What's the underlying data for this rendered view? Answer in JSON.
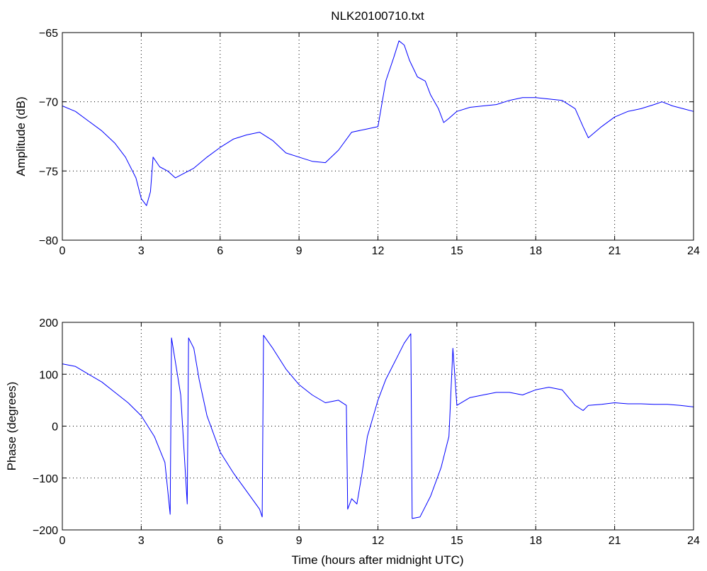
{
  "colors": {
    "line": "#0000ff",
    "axes": "#000000",
    "grid": "#000000",
    "background": "#ffffff"
  },
  "chart_data": [
    {
      "type": "line",
      "title": "NLK20100710.txt",
      "xlabel": "",
      "ylabel": "Amplitude (dB)",
      "xlim": [
        0,
        24
      ],
      "ylim": [
        -80,
        -65
      ],
      "xticks": [
        0,
        3,
        6,
        9,
        12,
        15,
        18,
        21,
        24
      ],
      "yticks": [
        -80,
        -75,
        -70,
        -65
      ],
      "grid": true,
      "series": [
        {
          "x": [
            0,
            0.5,
            1,
            1.5,
            2,
            2.4,
            2.8,
            3.0,
            3.2,
            3.35,
            3.45,
            3.7,
            4.0,
            4.3,
            4.6,
            5.0,
            5.5,
            6.0,
            6.5,
            7.0,
            7.5,
            8.0,
            8.5,
            9.0,
            9.5,
            10.0,
            10.5,
            11.0,
            11.5,
            12.0,
            12.3,
            12.6,
            12.8,
            13.0,
            13.2,
            13.5,
            13.8,
            14.0,
            14.3,
            14.5,
            14.7,
            15.0,
            15.5,
            16.0,
            16.5,
            17.0,
            17.5,
            18.0,
            18.5,
            19.0,
            19.5,
            19.8,
            20.0,
            20.5,
            21.0,
            21.5,
            22.0,
            22.5,
            22.8,
            23.2,
            23.6,
            24.0
          ],
          "y": [
            -70.3,
            -70.7,
            -71.4,
            -72.1,
            -73.0,
            -74.0,
            -75.5,
            -77.0,
            -77.5,
            -76.5,
            -74.0,
            -74.7,
            -75.0,
            -75.5,
            -75.2,
            -74.8,
            -74.0,
            -73.3,
            -72.7,
            -72.4,
            -72.2,
            -72.8,
            -73.7,
            -74.0,
            -74.3,
            -74.4,
            -73.5,
            -72.2,
            -72.0,
            -71.8,
            -68.5,
            -66.8,
            -65.6,
            -65.9,
            -67.0,
            -68.2,
            -68.5,
            -69.5,
            -70.5,
            -71.5,
            -71.2,
            -70.7,
            -70.4,
            -70.3,
            -70.2,
            -69.9,
            -69.7,
            -69.7,
            -69.8,
            -69.9,
            -70.5,
            -71.8,
            -72.6,
            -71.8,
            -71.1,
            -70.7,
            -70.5,
            -70.2,
            -70.0,
            -70.3,
            -70.5,
            -70.7
          ]
        }
      ]
    },
    {
      "type": "line",
      "title": "",
      "xlabel": "Time (hours after midnight UTC)",
      "ylabel": "Phase (degrees)",
      "xlim": [
        0,
        24
      ],
      "ylim": [
        -200,
        200
      ],
      "xticks": [
        0,
        3,
        6,
        9,
        12,
        15,
        18,
        21,
        24
      ],
      "yticks": [
        -200,
        -100,
        0,
        100,
        200
      ],
      "grid": true,
      "series": [
        {
          "x": [
            0,
            0.5,
            1.0,
            1.5,
            2.0,
            2.5,
            3.0,
            3.5,
            3.9,
            4.1,
            4.15,
            4.5,
            4.75,
            4.8,
            4.9,
            5.0,
            5.2,
            5.5,
            6.0,
            6.5,
            7.0,
            7.5,
            7.6,
            7.65,
            8.0,
            8.5,
            9.0,
            9.5,
            10.0,
            10.5,
            10.8,
            10.85,
            11.0,
            11.2,
            11.4,
            11.6,
            12.0,
            12.3,
            12.7,
            13.0,
            13.25,
            13.3,
            13.6,
            14.0,
            14.4,
            14.7,
            14.85,
            15.0,
            15.5,
            16.0,
            16.5,
            17.0,
            17.5,
            18.0,
            18.5,
            19.0,
            19.5,
            19.8,
            20.0,
            20.5,
            21.0,
            21.5,
            22.0,
            22.5,
            23.0,
            23.5,
            24.0
          ],
          "y": [
            120,
            115,
            100,
            85,
            65,
            45,
            20,
            -20,
            -70,
            -170,
            170,
            60,
            -150,
            170,
            160,
            150,
            90,
            20,
            -50,
            -90,
            -125,
            -160,
            -175,
            175,
            150,
            110,
            80,
            60,
            45,
            50,
            40,
            -160,
            -140,
            -150,
            -90,
            -20,
            50,
            90,
            130,
            160,
            178,
            -178,
            -175,
            -135,
            -80,
            -20,
            150,
            40,
            55,
            60,
            65,
            65,
            60,
            70,
            75,
            70,
            40,
            30,
            40,
            42,
            45,
            43,
            43,
            42,
            42,
            40,
            37
          ]
        }
      ]
    }
  ]
}
